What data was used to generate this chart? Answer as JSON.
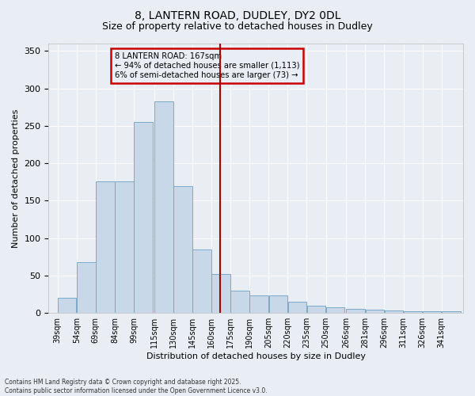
{
  "title_line1": "8, LANTERN ROAD, DUDLEY, DY2 0DL",
  "title_line2": "Size of property relative to detached houses in Dudley",
  "xlabel": "Distribution of detached houses by size in Dudley",
  "ylabel": "Number of detached properties",
  "bar_color": "#c8d8e8",
  "bar_edge_color": "#7aaac8",
  "vline_x": 167,
  "vline_color": "#aa0000",
  "annotation_title": "8 LANTERN ROAD: 167sqm",
  "annotation_line2": "← 94% of detached houses are smaller (1,113)",
  "annotation_line3": "6% of semi-detached houses are larger (73) →",
  "annotation_box_color": "#cc0000",
  "categories": [
    "39sqm",
    "54sqm",
    "69sqm",
    "84sqm",
    "99sqm",
    "115sqm",
    "130sqm",
    "145sqm",
    "160sqm",
    "175sqm",
    "190sqm",
    "205sqm",
    "220sqm",
    "235sqm",
    "250sqm",
    "266sqm",
    "281sqm",
    "296sqm",
    "311sqm",
    "326sqm",
    "341sqm"
  ],
  "bin_lefts": [
    39,
    54,
    69,
    84,
    99,
    115,
    130,
    145,
    160,
    175,
    190,
    205,
    220,
    235,
    250,
    266,
    281,
    296,
    311,
    326,
    341
  ],
  "bin_width": 15,
  "values": [
    20,
    68,
    176,
    176,
    255,
    283,
    170,
    85,
    52,
    30,
    23,
    23,
    15,
    10,
    8,
    5,
    4,
    3,
    2,
    2,
    2
  ],
  "ylim": [
    0,
    360
  ],
  "yticks": [
    0,
    50,
    100,
    150,
    200,
    250,
    300,
    350
  ],
  "xlim_left": 32,
  "xlim_right": 358,
  "background_color": "#e8eef4",
  "grid_color": "#ffffff",
  "footer_line1": "Contains HM Land Registry data © Crown copyright and database right 2025.",
  "footer_line2": "Contains public sector information licensed under the Open Government Licence v3.0."
}
